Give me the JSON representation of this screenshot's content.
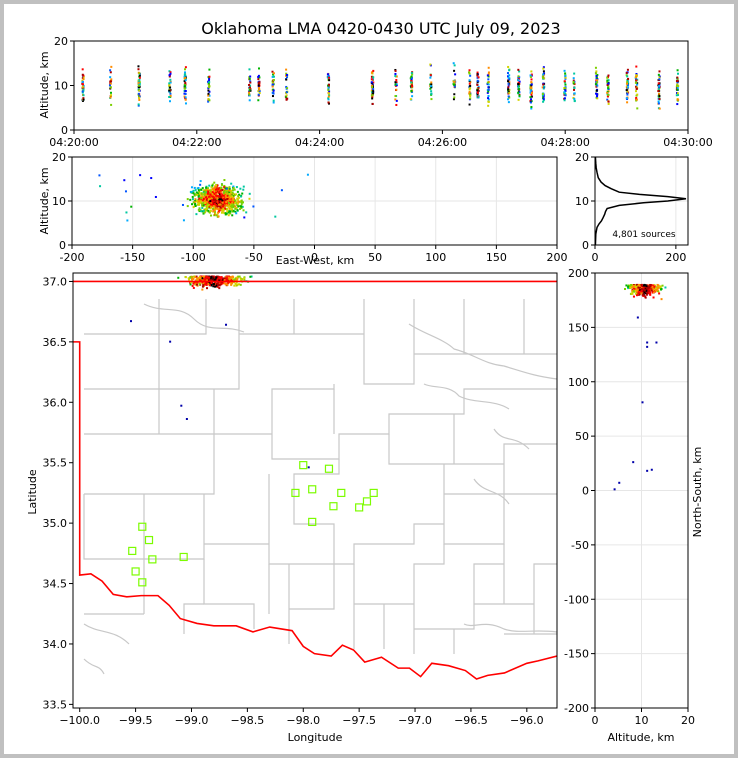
{
  "title": "Oklahoma LMA 0420-0430 UTC July 09, 2023",
  "colors": {
    "boundary_state": "#ff0000",
    "boundary_county": "#c8c8c8",
    "station": "#7cfc00",
    "axes": "#000000"
  },
  "chart_data": [
    {
      "type": "scatter",
      "panel": "altitude-time",
      "xlabel": "",
      "ylabel": "Altitude, km",
      "xlim": [
        "04:20:00",
        "04:30:00"
      ],
      "ylim": [
        0,
        20
      ],
      "xticks": [
        "04:20:00",
        "04:22:00",
        "04:24:00",
        "04:26:00",
        "04:28:00",
        "04:30:00"
      ],
      "yticks": [
        0,
        10,
        20
      ],
      "flash_times": [
        "04:20:07",
        "04:20:34",
        "04:21:02",
        "04:21:32",
        "04:21:47",
        "04:22:10",
        "04:22:50",
        "04:22:59",
        "04:23:13",
        "04:23:26",
        "04:24:07",
        "04:24:50",
        "04:25:13",
        "04:25:28",
        "04:25:47",
        "04:26:10",
        "04:26:25",
        "04:26:33",
        "04:26:43",
        "04:27:03",
        "04:27:13",
        "04:27:25",
        "04:27:37",
        "04:27:58",
        "04:28:07",
        "04:28:29",
        "04:28:40",
        "04:28:59",
        "04:29:08",
        "04:29:30",
        "04:29:48"
      ]
    },
    {
      "type": "scatter",
      "panel": "altitude-eastwest",
      "xlabel": "East-West, km",
      "ylabel": "Altitude, km",
      "xlim": [
        -200,
        200
      ],
      "ylim": [
        0,
        20
      ],
      "xticks": [
        -200,
        -150,
        -100,
        -50,
        0,
        50,
        100,
        150,
        200
      ],
      "yticks": [
        0,
        10,
        20
      ],
      "cluster_center_km": [
        -80,
        10.5
      ]
    },
    {
      "type": "line",
      "panel": "altitude-histogram",
      "xlim": [
        0,
        230
      ],
      "ylim": [
        0,
        20
      ],
      "xticks": [
        0,
        200
      ],
      "yticks": [
        0,
        10,
        20
      ],
      "annotation": "4,801 sources",
      "x": [
        1,
        2,
        5,
        10,
        16,
        20,
        24,
        26,
        30,
        60,
        120,
        180,
        225,
        180,
        110,
        60,
        40,
        25,
        15,
        8,
        5,
        3,
        2,
        1
      ],
      "y": [
        0,
        2.5,
        4.0,
        4.8,
        5.5,
        6.2,
        7.0,
        7.6,
        8.3,
        9.0,
        9.6,
        10.0,
        10.5,
        11.0,
        11.5,
        12.0,
        12.8,
        13.5,
        14.3,
        15.3,
        16.5,
        17.5,
        18.5,
        20
      ]
    },
    {
      "type": "map",
      "panel": "plan-view",
      "xlabel": "Longitude",
      "ylabel": "Latitude",
      "xlim": [
        -100.06,
        -95.73
      ],
      "ylim": [
        33.47,
        37.07
      ],
      "xticks": [
        -100.0,
        -99.5,
        -99.0,
        -98.5,
        -98.0,
        -97.5,
        -97.0,
        -96.5,
        -96.0
      ],
      "xtick_labels": [
        "−100.0",
        "−99.5",
        "−99.0",
        "−98.5",
        "−98.0",
        "−97.5",
        "−97.0",
        "−96.5",
        "−96.0"
      ],
      "yticks": [
        33.5,
        34.0,
        34.5,
        35.0,
        35.5,
        36.0,
        36.5,
        37.0
      ],
      "stations": [
        {
          "lon": -99.44,
          "lat": 34.97
        },
        {
          "lon": -99.38,
          "lat": 34.86
        },
        {
          "lon": -99.53,
          "lat": 34.77
        },
        {
          "lon": -99.35,
          "lat": 34.7
        },
        {
          "lon": -99.07,
          "lat": 34.72
        },
        {
          "lon": -99.5,
          "lat": 34.6
        },
        {
          "lon": -99.44,
          "lat": 34.51
        },
        {
          "lon": -98.0,
          "lat": 35.48
        },
        {
          "lon": -97.77,
          "lat": 35.45
        },
        {
          "lon": -98.07,
          "lat": 35.25
        },
        {
          "lon": -97.92,
          "lat": 35.28
        },
        {
          "lon": -97.66,
          "lat": 35.25
        },
        {
          "lon": -97.37,
          "lat": 35.25
        },
        {
          "lon": -97.43,
          "lat": 35.18
        },
        {
          "lon": -97.73,
          "lat": 35.14
        },
        {
          "lon": -97.5,
          "lat": 35.13
        },
        {
          "lon": -97.92,
          "lat": 35.01
        }
      ],
      "source_cluster": {
        "lon": -98.8,
        "lat": 37.05
      }
    },
    {
      "type": "scatter",
      "panel": "northsouth-altitude",
      "xlabel": "Altitude, km",
      "ylabel": "North-South, km",
      "xlim": [
        0,
        20
      ],
      "ylim": [
        -200,
        200
      ],
      "xticks": [
        0,
        10,
        20
      ],
      "yticks": [
        -200,
        -150,
        -100,
        -50,
        0,
        50,
        100,
        150,
        200
      ],
      "cluster_center": [
        10.5,
        190
      ]
    }
  ]
}
